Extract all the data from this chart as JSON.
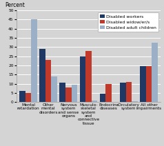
{
  "title": "Percent",
  "categories": [
    "Mental\nretardation",
    "Other\nmental\ndisorders",
    "Nervous\nsystem\nand sense\norgans",
    "Musculo-\nskeletal\nsystem\nand\nconnective\ntissue",
    "Endocrine\ndiseases",
    "Circulatory\nsystem",
    "All other\nimpairments"
  ],
  "series": {
    "Disabled workers": [
      6,
      29,
      10.5,
      25,
      4.5,
      10.5,
      19.5
    ],
    "Disabled widow/er/s": [
      5,
      23,
      8,
      28,
      10,
      11,
      19.5
    ],
    "Disabled adult children": [
      45,
      14,
      9.5,
      1,
      0,
      0.5,
      32.5
    ]
  },
  "colors": {
    "Disabled workers": "#1f3864",
    "Disabled widow/er/s": "#c0392b",
    "Disabled adult children": "#9bafc7"
  },
  "ylim": [
    0,
    50
  ],
  "yticks": [
    0,
    5,
    10,
    15,
    20,
    25,
    30,
    35,
    40,
    45,
    50
  ],
  "background_color": "#d4d4d4",
  "grid_color": "#ffffff",
  "legend_fontsize": 4.5,
  "title_fontsize": 5.5,
  "tick_fontsize": 4.2
}
